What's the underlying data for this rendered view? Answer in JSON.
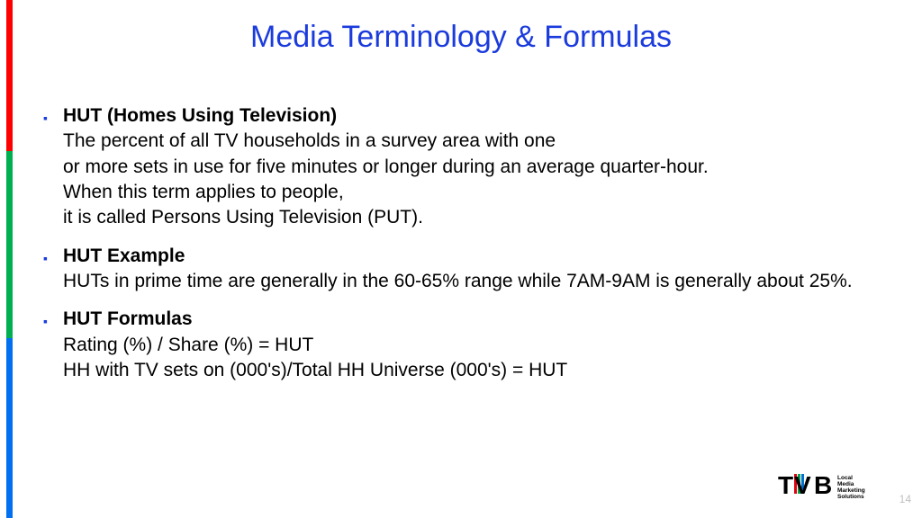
{
  "colors": {
    "title": "#1b3bdd",
    "bullet": "#1b3bdd",
    "stripe_red": "#ff0000",
    "stripe_green": "#00b050",
    "stripe_blue": "#0070f0",
    "page_num": "#bfbfbf",
    "logo_accent_red": "#e3000f",
    "logo_accent_green": "#00a64f",
    "logo_accent_blue": "#0071ce"
  },
  "title": "Media Terminology & Formulas",
  "bullets": [
    {
      "heading": "HUT (Homes Using Television)",
      "body": "The percent of all TV households in a survey area with one\nor more sets in use for five minutes or longer during an average quarter-hour.\nWhen this term applies to people,\nit is called Persons Using Television (PUT)."
    },
    {
      "heading": "HUT Example",
      "body": "HUTs in prime time are generally in the 60-65% range while 7AM-9AM is generally about 25%."
    },
    {
      "heading": "HUT Formulas",
      "body": "Rating (%) / Share (%) = HUT\nHH with TV sets on (000's)/Total HH Universe (000's) = HUT"
    }
  ],
  "page_number": "14",
  "logo": {
    "brand": "TVB",
    "tagline": [
      "Local",
      "Media",
      "Marketing",
      "Solutions"
    ]
  }
}
